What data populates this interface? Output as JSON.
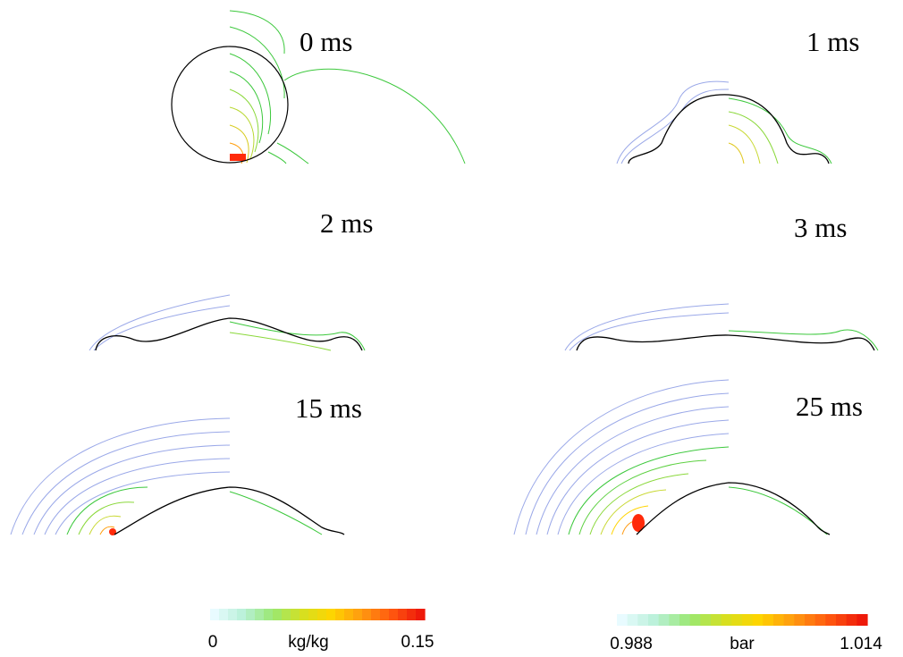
{
  "panels": [
    {
      "time": "0 ms"
    },
    {
      "time": "1 ms"
    },
    {
      "time": "2 ms"
    },
    {
      "time": "3 ms"
    },
    {
      "time": "15 ms"
    },
    {
      "time": "25 ms"
    }
  ],
  "colorbars": [
    {
      "min": "0",
      "unit": "kg/kg",
      "max": "0.15",
      "colors": [
        "#e8fbff",
        "#b8f0d8",
        "#9ae870",
        "#d6e020",
        "#ffd400",
        "#ff9a10",
        "#ff5a10",
        "#ee1a0a"
      ]
    },
    {
      "min": "0.988",
      "unit": "bar",
      "max": "1.014",
      "colors": [
        "#e8fbff",
        "#b8f0d8",
        "#9ae870",
        "#d6e020",
        "#ffd400",
        "#ff9a10",
        "#ff5a10",
        "#ee1a0a"
      ]
    }
  ],
  "colors": {
    "interface": "#000000",
    "vapor_contour": "#3cc83c",
    "pressure_contour": "#9aa8e8",
    "hot": "#ff2a0a"
  }
}
